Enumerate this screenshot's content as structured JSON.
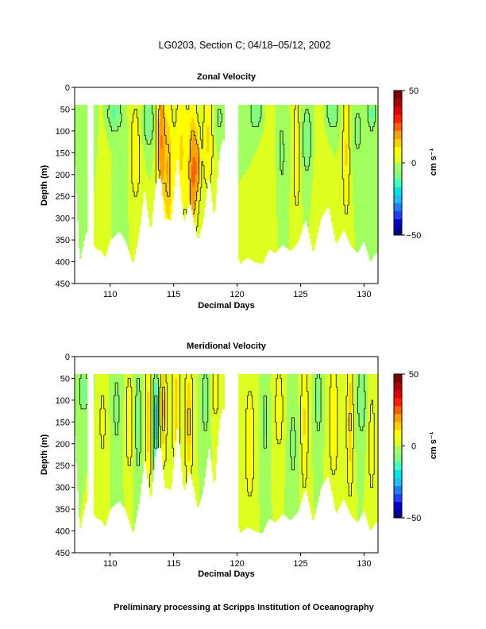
{
  "figure": {
    "title": "LG0203, Section C; 04/18–05/12, 2002",
    "footer": "Preliminary processing at Scripps Institution of Oceanography"
  },
  "colors": {
    "background": "#ffffff",
    "colormap": [
      "#00008f",
      "#0000cf",
      "#1f3fff",
      "#1f7fff",
      "#1fbfff",
      "#00e4e4",
      "#40ffbf",
      "#7fff7f",
      "#a0ff5f",
      "#dfff20",
      "#ffff00",
      "#ffd000",
      "#ff9f00",
      "#ff6000",
      "#ff2000",
      "#df0000",
      "#af0000",
      "#800000"
    ]
  },
  "chart_data": [
    {
      "type": "heatmap",
      "title": "Zonal Velocity",
      "xlabel": "Decimal Days",
      "ylabel": "Depth (m)",
      "xlim": [
        107.2,
        131.1
      ],
      "ylim": [
        450,
        0
      ],
      "xticks": [
        110,
        115,
        120,
        125,
        130
      ],
      "yticks": [
        0,
        50,
        100,
        150,
        200,
        250,
        300,
        350,
        400,
        450
      ],
      "colorbar": {
        "label": "cm s⁻¹",
        "range": [
          -50,
          50
        ],
        "ticks": [
          -50,
          0,
          50
        ],
        "tick_labels": [
          "−50",
          "0",
          "50"
        ]
      },
      "data_top_depth": 40,
      "contour_interval_cm_s": 10,
      "column_width_days": 0.1,
      "gaps": [
        [
          108.2,
          108.7
        ],
        [
          119.0,
          120.1
        ]
      ],
      "profile_bottom_depths": [
        {
          "day": 107.2,
          "depth": 150
        },
        {
          "day": 107.6,
          "depth": 400
        },
        {
          "day": 108.1,
          "depth": 330
        },
        {
          "day": 108.9,
          "depth": 370
        },
        {
          "day": 109.3,
          "depth": 375
        },
        {
          "day": 109.6,
          "depth": 390
        },
        {
          "day": 110.0,
          "depth": 350
        },
        {
          "day": 110.7,
          "depth": 330
        },
        {
          "day": 111.2,
          "depth": 350
        },
        {
          "day": 111.8,
          "depth": 405
        },
        {
          "day": 112.3,
          "depth": 330
        },
        {
          "day": 112.7,
          "depth": 230
        },
        {
          "day": 113.2,
          "depth": 330
        },
        {
          "day": 113.6,
          "depth": 215
        },
        {
          "day": 114.0,
          "depth": 200
        },
        {
          "day": 114.3,
          "depth": 300
        },
        {
          "day": 114.8,
          "depth": 305
        },
        {
          "day": 115.3,
          "depth": 150
        },
        {
          "day": 115.8,
          "depth": 310
        },
        {
          "day": 116.3,
          "depth": 260
        },
        {
          "day": 116.9,
          "depth": 350
        },
        {
          "day": 117.3,
          "depth": 310
        },
        {
          "day": 117.8,
          "depth": 200
        },
        {
          "day": 118.2,
          "depth": 300
        },
        {
          "day": 118.6,
          "depth": 150
        },
        {
          "day": 118.9,
          "depth": 110
        },
        {
          "day": 120.2,
          "depth": 405
        },
        {
          "day": 120.8,
          "depth": 390
        },
        {
          "day": 121.4,
          "depth": 400
        },
        {
          "day": 122.0,
          "depth": 405
        },
        {
          "day": 122.5,
          "depth": 370
        },
        {
          "day": 123.0,
          "depth": 380
        },
        {
          "day": 123.6,
          "depth": 360
        },
        {
          "day": 124.2,
          "depth": 375
        },
        {
          "day": 124.8,
          "depth": 355
        },
        {
          "day": 125.4,
          "depth": 300
        },
        {
          "day": 126.0,
          "depth": 380
        },
        {
          "day": 126.6,
          "depth": 300
        },
        {
          "day": 127.2,
          "depth": 270
        },
        {
          "day": 127.8,
          "depth": 360
        },
        {
          "day": 128.4,
          "depth": 325
        },
        {
          "day": 129.0,
          "depth": 365
        },
        {
          "day": 129.5,
          "depth": 380
        },
        {
          "day": 130.0,
          "depth": 350
        },
        {
          "day": 130.5,
          "depth": 400
        },
        {
          "day": 130.9,
          "depth": 380
        }
      ],
      "features": [
        {
          "day": 108.4,
          "width": 0.5,
          "depth": 120,
          "depth_width": 90,
          "amp": -6
        },
        {
          "day": 109.3,
          "width": 0.4,
          "depth": 220,
          "depth_width": 120,
          "amp": 4
        },
        {
          "day": 110.3,
          "width": 0.5,
          "depth": 60,
          "depth_width": 40,
          "amp": -12
        },
        {
          "day": 111.0,
          "width": 0.4,
          "depth": 200,
          "depth_width": 140,
          "amp": -5
        },
        {
          "day": 112.0,
          "width": 0.5,
          "depth": 150,
          "depth_width": 150,
          "amp": 8
        },
        {
          "day": 113.0,
          "width": 0.5,
          "depth": 80,
          "depth_width": 60,
          "amp": -10
        },
        {
          "day": 114.0,
          "width": 0.35,
          "depth": 120,
          "depth_width": 160,
          "amp": 22
        },
        {
          "day": 114.6,
          "width": 0.35,
          "depth": 200,
          "depth_width": 160,
          "amp": 16
        },
        {
          "day": 115.6,
          "width": 0.5,
          "depth": 150,
          "depth_width": 150,
          "amp": 12
        },
        {
          "day": 116.5,
          "width": 0.35,
          "depth": 200,
          "depth_width": 150,
          "amp": 22
        },
        {
          "day": 116.9,
          "width": 0.25,
          "depth": 180,
          "depth_width": 80,
          "amp": 14
        },
        {
          "day": 117.7,
          "width": 0.4,
          "depth": 120,
          "depth_width": 120,
          "amp": 12
        },
        {
          "day": 118.6,
          "width": 0.4,
          "depth": 70,
          "depth_width": 50,
          "amp": -6
        },
        {
          "day": 121.5,
          "width": 0.5,
          "depth": 60,
          "depth_width": 40,
          "amp": -10
        },
        {
          "day": 122.5,
          "width": 0.5,
          "depth": 200,
          "depth_width": 150,
          "amp": 5
        },
        {
          "day": 123.5,
          "width": 0.4,
          "depth": 150,
          "depth_width": 120,
          "amp": -6
        },
        {
          "day": 124.7,
          "width": 0.3,
          "depth": 150,
          "depth_width": 150,
          "amp": 10
        },
        {
          "day": 125.5,
          "width": 0.5,
          "depth": 120,
          "depth_width": 100,
          "amp": -8
        },
        {
          "day": 126.5,
          "width": 0.5,
          "depth": 200,
          "depth_width": 150,
          "amp": 5
        },
        {
          "day": 127.5,
          "width": 0.5,
          "depth": 60,
          "depth_width": 40,
          "amp": -10
        },
        {
          "day": 128.6,
          "width": 0.3,
          "depth": 150,
          "depth_width": 150,
          "amp": 12
        },
        {
          "day": 129.5,
          "width": 0.5,
          "depth": 100,
          "depth_width": 100,
          "amp": -6
        },
        {
          "day": 130.6,
          "width": 0.3,
          "depth": 60,
          "depth_width": 40,
          "amp": -12
        }
      ]
    },
    {
      "type": "heatmap",
      "title": "Meridional Velocity",
      "xlabel": "Decimal Days",
      "ylabel": "Depth (m)",
      "xlim": [
        107.2,
        131.1
      ],
      "ylim": [
        450,
        0
      ],
      "xticks": [
        110,
        115,
        120,
        125,
        130
      ],
      "yticks": [
        0,
        50,
        100,
        150,
        200,
        250,
        300,
        350,
        400,
        450
      ],
      "colorbar": {
        "label": "cm s⁻¹",
        "range": [
          -50,
          50
        ],
        "ticks": [
          -50,
          0,
          50
        ],
        "tick_labels": [
          "−50",
          "0",
          "50"
        ]
      },
      "data_top_depth": 40,
      "contour_interval_cm_s": 10,
      "column_width_days": 0.1,
      "gaps": [
        [
          108.2,
          108.7
        ],
        [
          119.0,
          120.1
        ]
      ],
      "profile_bottom_depths": [
        {
          "day": 107.2,
          "depth": 150
        },
        {
          "day": 107.6,
          "depth": 400
        },
        {
          "day": 108.1,
          "depth": 330
        },
        {
          "day": 108.9,
          "depth": 370
        },
        {
          "day": 109.3,
          "depth": 375
        },
        {
          "day": 109.6,
          "depth": 390
        },
        {
          "day": 110.0,
          "depth": 350
        },
        {
          "day": 110.7,
          "depth": 330
        },
        {
          "day": 111.2,
          "depth": 350
        },
        {
          "day": 111.8,
          "depth": 405
        },
        {
          "day": 112.3,
          "depth": 330
        },
        {
          "day": 112.7,
          "depth": 230
        },
        {
          "day": 113.2,
          "depth": 330
        },
        {
          "day": 113.6,
          "depth": 215
        },
        {
          "day": 114.0,
          "depth": 200
        },
        {
          "day": 114.3,
          "depth": 300
        },
        {
          "day": 114.8,
          "depth": 305
        },
        {
          "day": 115.3,
          "depth": 150
        },
        {
          "day": 115.8,
          "depth": 310
        },
        {
          "day": 116.3,
          "depth": 260
        },
        {
          "day": 116.9,
          "depth": 350
        },
        {
          "day": 117.3,
          "depth": 310
        },
        {
          "day": 117.8,
          "depth": 200
        },
        {
          "day": 118.2,
          "depth": 300
        },
        {
          "day": 118.6,
          "depth": 150
        },
        {
          "day": 118.9,
          "depth": 110
        },
        {
          "day": 120.2,
          "depth": 405
        },
        {
          "day": 120.8,
          "depth": 390
        },
        {
          "day": 121.4,
          "depth": 400
        },
        {
          "day": 122.0,
          "depth": 405
        },
        {
          "day": 122.5,
          "depth": 370
        },
        {
          "day": 123.0,
          "depth": 380
        },
        {
          "day": 123.6,
          "depth": 360
        },
        {
          "day": 124.2,
          "depth": 375
        },
        {
          "day": 124.8,
          "depth": 355
        },
        {
          "day": 125.4,
          "depth": 300
        },
        {
          "day": 126.0,
          "depth": 380
        },
        {
          "day": 126.6,
          "depth": 300
        },
        {
          "day": 127.2,
          "depth": 270
        },
        {
          "day": 127.8,
          "depth": 360
        },
        {
          "day": 128.4,
          "depth": 325
        },
        {
          "day": 129.0,
          "depth": 365
        },
        {
          "day": 129.5,
          "depth": 380
        },
        {
          "day": 130.0,
          "depth": 350
        },
        {
          "day": 130.5,
          "depth": 400
        },
        {
          "day": 130.9,
          "depth": 380
        }
      ],
      "features": [
        {
          "day": 107.9,
          "width": 0.5,
          "depth": 80,
          "depth_width": 60,
          "amp": -8
        },
        {
          "day": 109.4,
          "width": 0.4,
          "depth": 150,
          "depth_width": 150,
          "amp": 6
        },
        {
          "day": 110.5,
          "width": 0.4,
          "depth": 120,
          "depth_width": 150,
          "amp": -6
        },
        {
          "day": 111.5,
          "width": 0.3,
          "depth": 150,
          "depth_width": 120,
          "amp": 10
        },
        {
          "day": 112.2,
          "width": 0.3,
          "depth": 150,
          "depth_width": 150,
          "amp": -8
        },
        {
          "day": 113.0,
          "width": 0.25,
          "depth": 150,
          "depth_width": 150,
          "amp": 14
        },
        {
          "day": 113.6,
          "width": 0.2,
          "depth": 150,
          "depth_width": 120,
          "amp": -20
        },
        {
          "day": 114.2,
          "width": 0.25,
          "depth": 120,
          "depth_width": 120,
          "amp": 18
        },
        {
          "day": 115.2,
          "width": 0.3,
          "depth": 120,
          "depth_width": 160,
          "amp": 14
        },
        {
          "day": 116.2,
          "width": 0.3,
          "depth": 150,
          "depth_width": 150,
          "amp": 16
        },
        {
          "day": 117.5,
          "width": 0.3,
          "depth": 100,
          "depth_width": 100,
          "amp": -8
        },
        {
          "day": 118.3,
          "width": 0.3,
          "depth": 80,
          "depth_width": 80,
          "amp": 8
        },
        {
          "day": 121.0,
          "width": 0.4,
          "depth": 200,
          "depth_width": 150,
          "amp": 10
        },
        {
          "day": 122.2,
          "width": 0.3,
          "depth": 150,
          "depth_width": 150,
          "amp": -6
        },
        {
          "day": 123.3,
          "width": 0.4,
          "depth": 120,
          "depth_width": 120,
          "amp": 8
        },
        {
          "day": 124.4,
          "width": 0.4,
          "depth": 200,
          "depth_width": 150,
          "amp": -6
        },
        {
          "day": 125.3,
          "width": 0.3,
          "depth": 150,
          "depth_width": 160,
          "amp": 12
        },
        {
          "day": 126.4,
          "width": 0.3,
          "depth": 100,
          "depth_width": 100,
          "amp": -8
        },
        {
          "day": 127.6,
          "width": 0.4,
          "depth": 150,
          "depth_width": 150,
          "amp": 10
        },
        {
          "day": 128.9,
          "width": 0.25,
          "depth": 150,
          "depth_width": 160,
          "amp": 16
        },
        {
          "day": 129.8,
          "width": 0.4,
          "depth": 100,
          "depth_width": 100,
          "amp": -8
        },
        {
          "day": 130.6,
          "width": 0.3,
          "depth": 200,
          "depth_width": 150,
          "amp": 8
        }
      ]
    }
  ]
}
